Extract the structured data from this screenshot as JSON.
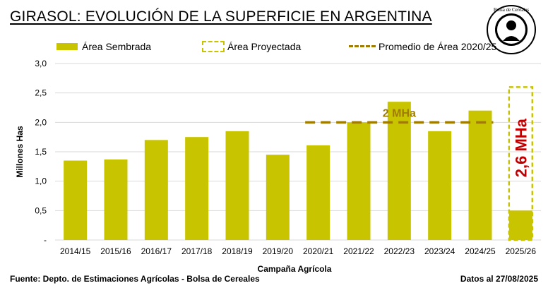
{
  "header": {
    "title": "GIRASOL: EVOLUCIÓN DE LA SUPERFICIE EN ARGENTINA",
    "logo_text": "Bolsa de Cereales"
  },
  "legend": {
    "sembrada": "Área Sembrada",
    "proyectada": "Área Proyectada",
    "promedio": "Promedio de Área 2020/25"
  },
  "footer": {
    "source": "Fuente: Depto. de Estimaciones Agrícolas - Bolsa de Cereales",
    "date": "Datos al 27/08/2025"
  },
  "chart_data": {
    "type": "bar",
    "title": "GIRASOL: EVOLUCIÓN DE LA SUPERFICIE EN ARGENTINA",
    "xlabel": "Campaña Agrícola",
    "ylabel": "Millones Has",
    "ylim": [
      0,
      3.0
    ],
    "yticks": [
      "-",
      "0,5",
      "1,0",
      "1,5",
      "2,0",
      "2,5",
      "3,0"
    ],
    "categories": [
      "2014/15",
      "2015/16",
      "2016/17",
      "2017/18",
      "2018/19",
      "2019/20",
      "2020/21",
      "2021/22",
      "2022/23",
      "2023/24",
      "2024/25",
      "2025/26"
    ],
    "series": [
      {
        "name": "Área Sembrada",
        "values": [
          1.35,
          1.37,
          1.7,
          1.75,
          1.85,
          1.45,
          1.61,
          2.0,
          2.35,
          1.85,
          2.2,
          0.5
        ]
      },
      {
        "name": "Área Proyectada",
        "values": [
          null,
          null,
          null,
          null,
          null,
          null,
          null,
          null,
          null,
          null,
          null,
          2.6
        ]
      }
    ],
    "average": {
      "name": "Promedio de Área 2020/25",
      "value": 2.0,
      "from": "2020/21",
      "to": "2024/25",
      "label": "2 MHa"
    },
    "projection_label": "2,6  MHa",
    "colors": {
      "bar": "#c8c400",
      "average": "#a07c00",
      "projection_label": "#c00000",
      "grid": "#d9d9d9"
    },
    "grid": true,
    "legend_position": "top"
  }
}
